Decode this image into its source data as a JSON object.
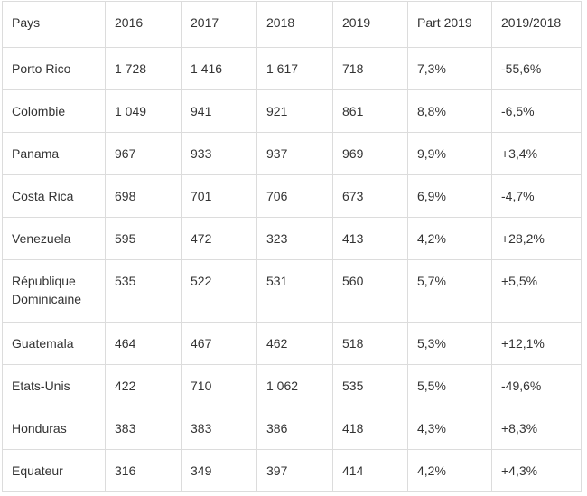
{
  "table": {
    "headers": [
      "Pays",
      "2016",
      "2017",
      "2018",
      "2019",
      "Part 2019",
      "2019/2018"
    ],
    "rows": [
      [
        "Porto Rico",
        "1 728",
        "1 416",
        "1 617",
        "718",
        "7,3%",
        "-55,6%"
      ],
      [
        "Colombie",
        "1 049",
        "941",
        "921",
        "861",
        "8,8%",
        "-6,5%"
      ],
      [
        "Panama",
        "967",
        "933",
        "937",
        "969",
        "9,9%",
        "+3,4%"
      ],
      [
        "Costa Rica",
        "698",
        "701",
        "706",
        "673",
        "6,9%",
        "-4,7%"
      ],
      [
        "Venezuela",
        "595",
        "472",
        "323",
        "413",
        "4,2%",
        "+28,2%"
      ],
      [
        "République Dominicaine",
        "535",
        "522",
        "531",
        "560",
        "5,7%",
        "+5,5%"
      ],
      [
        "Guatemala",
        "464",
        "467",
        "462",
        "518",
        "5,3%",
        "+12,1%"
      ],
      [
        "Etats-Unis",
        "422",
        "710",
        "1 062",
        "535",
        "5,5%",
        "-49,6%"
      ],
      [
        "Honduras",
        "383",
        "383",
        "386",
        "418",
        "4,3%",
        "+8,3%"
      ],
      [
        "Equateur",
        "316",
        "349",
        "397",
        "414",
        "4,2%",
        "+4,3%"
      ]
    ]
  }
}
